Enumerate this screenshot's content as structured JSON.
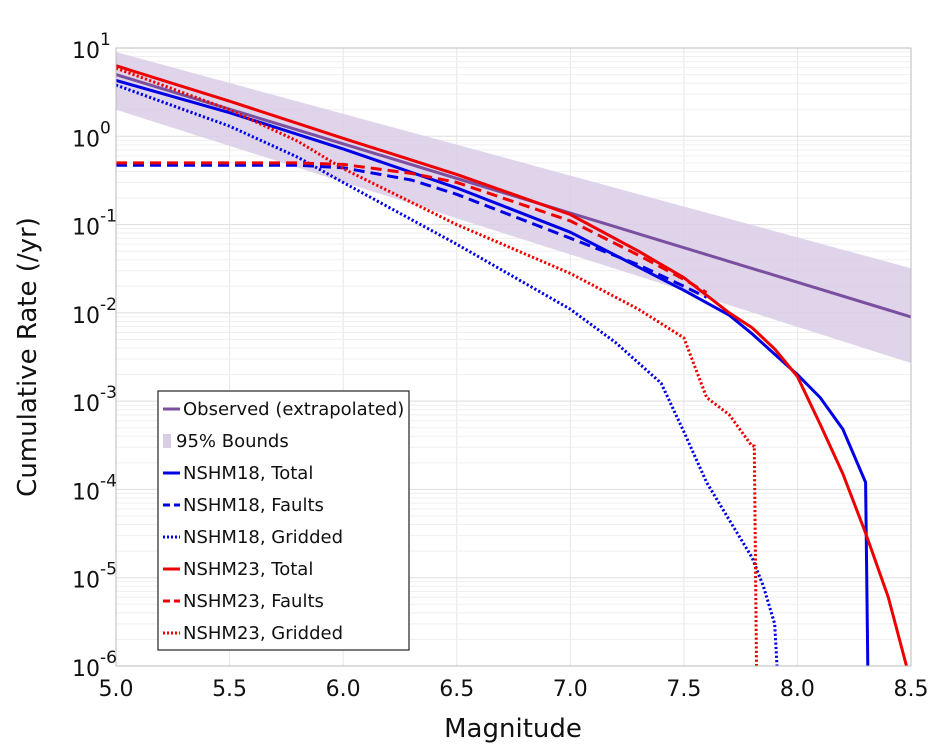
{
  "chart_data": {
    "type": "line",
    "xlabel": "Magnitude",
    "ylabel": "Cumulative Rate (/yr)",
    "log_y": true,
    "xlim": [
      5.0,
      8.5
    ],
    "ylim": [
      1e-06,
      10
    ],
    "grid": true,
    "legend_position": "bottom-left",
    "x_tick_labels": [
      "5.0",
      "5.5",
      "6.0",
      "6.5",
      "7.0",
      "7.5",
      "8.0",
      "8.5"
    ],
    "y_tick_labels": [
      {
        "base": "10",
        "exp": "1"
      },
      {
        "base": "10",
        "exp": "0"
      },
      {
        "base": "10",
        "exp": "-1"
      },
      {
        "base": "10",
        "exp": "-2"
      },
      {
        "base": "10",
        "exp": "-3"
      },
      {
        "base": "10",
        "exp": "-4"
      },
      {
        "base": "10",
        "exp": "-5"
      },
      {
        "base": "10",
        "exp": "-6"
      }
    ],
    "band": {
      "name": "95% Bounds",
      "color": "#d9cde6",
      "x": [
        5.0,
        8.5
      ],
      "upper": [
        9.0,
        0.032
      ],
      "lower": [
        2.0,
        0.0027
      ]
    },
    "series": [
      {
        "name": "Observed (extrapolated)",
        "color": "#7b4fa0",
        "dash": "solid",
        "x": [
          5.0,
          8.5
        ],
        "y": [
          5.0,
          0.009
        ]
      },
      {
        "name": "NSHM18, Total",
        "color": "#0000e6",
        "dash": "solid",
        "x": [
          5.0,
          5.5,
          6.0,
          6.5,
          7.0,
          7.3,
          7.5,
          7.7,
          7.8,
          7.9,
          8.0,
          8.1,
          8.2,
          8.3,
          8.31
        ],
        "y": [
          4.3,
          1.85,
          0.72,
          0.26,
          0.082,
          0.033,
          0.018,
          0.0094,
          0.0058,
          0.0034,
          0.002,
          0.0011,
          0.00048,
          0.00012,
          1e-06
        ]
      },
      {
        "name": "NSHM18, Faults",
        "color": "#0000e6",
        "dash": "dashed",
        "x": [
          5.0,
          5.5,
          5.8,
          6.0,
          6.3,
          6.5,
          7.0,
          7.3,
          7.5,
          7.6
        ],
        "y": [
          0.47,
          0.47,
          0.47,
          0.44,
          0.32,
          0.22,
          0.07,
          0.035,
          0.02,
          0.015
        ]
      },
      {
        "name": "NSHM18, Gridded",
        "color": "#0000e6",
        "dash": "dotted",
        "x": [
          5.0,
          5.5,
          5.8,
          6.0,
          6.5,
          7.0,
          7.2,
          7.4,
          7.5,
          7.6,
          7.7,
          7.8,
          7.85,
          7.9,
          7.91
        ],
        "y": [
          3.8,
          1.3,
          0.58,
          0.3,
          0.06,
          0.011,
          0.0046,
          0.0016,
          0.00045,
          0.00012,
          4.5e-05,
          1.7e-05,
          8e-06,
          3e-06,
          1e-06
        ]
      },
      {
        "name": "NSHM23, Total",
        "color": "#ee0000",
        "dash": "solid",
        "x": [
          5.0,
          5.5,
          6.0,
          6.5,
          7.0,
          7.3,
          7.5,
          7.7,
          7.8,
          7.9,
          8.0,
          8.1,
          8.2,
          8.3,
          8.4,
          8.48
        ],
        "y": [
          6.3,
          2.5,
          0.95,
          0.37,
          0.13,
          0.05,
          0.025,
          0.01,
          0.0068,
          0.0039,
          0.0019,
          0.00055,
          0.00015,
          3.2e-05,
          6e-06,
          1e-06
        ]
      },
      {
        "name": "NSHM23, Faults",
        "color": "#ee0000",
        "dash": "dashed",
        "x": [
          5.0,
          5.5,
          5.8,
          6.0,
          6.3,
          6.5,
          7.0,
          7.3,
          7.5,
          7.6
        ],
        "y": [
          0.5,
          0.5,
          0.5,
          0.48,
          0.38,
          0.3,
          0.11,
          0.045,
          0.024,
          0.017
        ]
      },
      {
        "name": "NSHM23, Gridded",
        "color": "#ee0000",
        "dash": "dotted",
        "x": [
          5.0,
          5.5,
          5.8,
          6.0,
          6.5,
          7.0,
          7.3,
          7.5,
          7.6,
          7.7,
          7.8,
          7.81,
          7.82
        ],
        "y": [
          5.9,
          2.0,
          0.88,
          0.43,
          0.1,
          0.028,
          0.011,
          0.0052,
          0.0011,
          0.0007,
          0.00031,
          0.00031,
          1e-06
        ]
      }
    ]
  }
}
